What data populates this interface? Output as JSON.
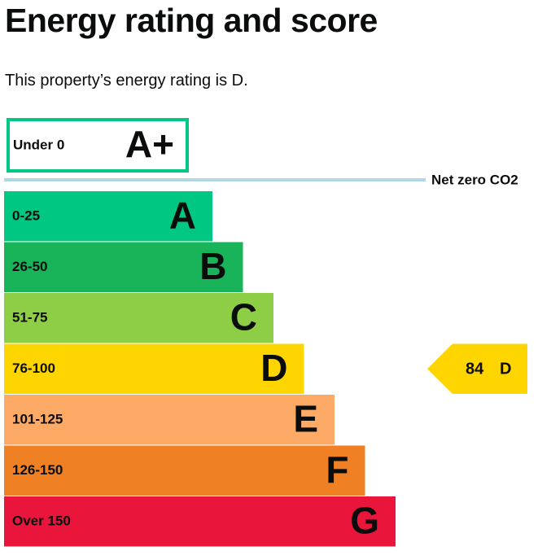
{
  "header": {
    "title": "Energy rating and score",
    "intro": "This property’s energy rating is D."
  },
  "top_band": {
    "range": "Under 0",
    "letter": "A+",
    "color": "#00c781"
  },
  "net_zero": {
    "label": "Net zero CO2",
    "color": "#b1d7e3"
  },
  "bands": [
    {
      "range": "0-25",
      "letter": "A",
      "color": "#00c781"
    },
    {
      "range": "26-50",
      "letter": "B",
      "color": "#19b459"
    },
    {
      "range": "51-75",
      "letter": "C",
      "color": "#8dce46"
    },
    {
      "range": "76-100",
      "letter": "D",
      "color": "#ffd500"
    },
    {
      "range": "101-125",
      "letter": "E",
      "color": "#fcaa65"
    },
    {
      "range": "126-150",
      "letter": "F",
      "color": "#ef8023"
    },
    {
      "range": "Over 150",
      "letter": "G",
      "color": "#e9153b"
    }
  ],
  "current": {
    "score": 84,
    "rating": "D"
  }
}
